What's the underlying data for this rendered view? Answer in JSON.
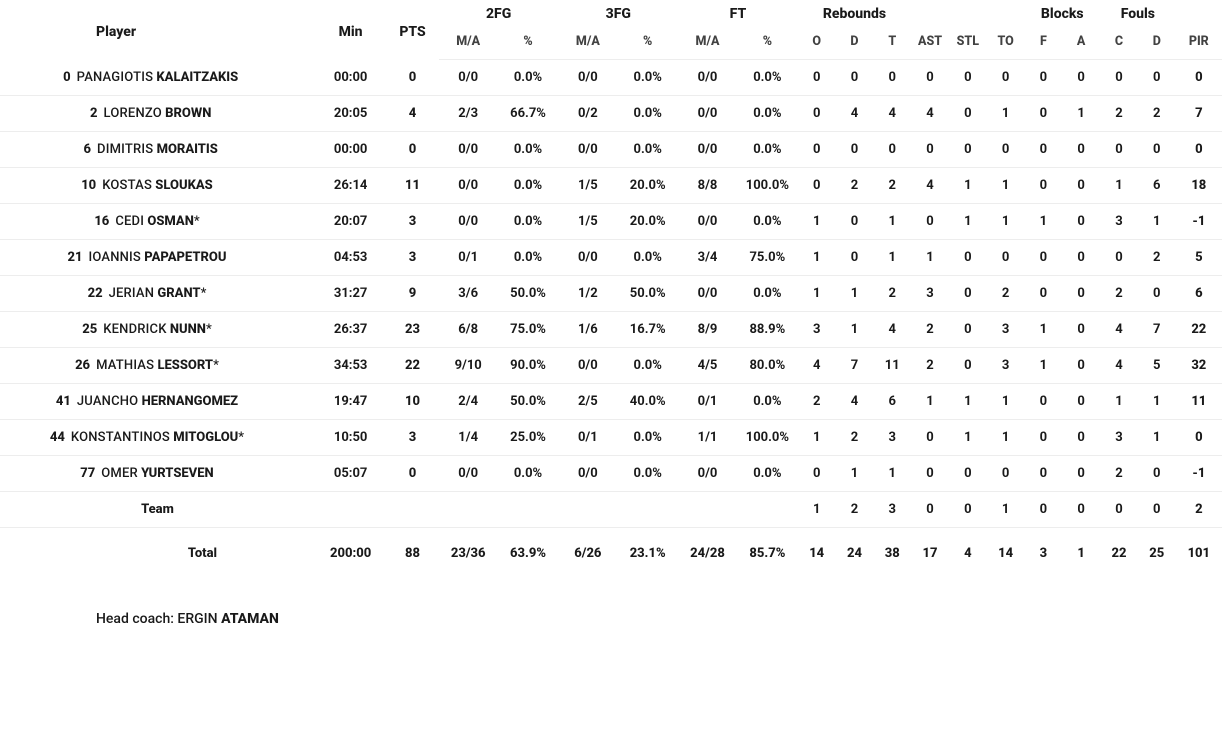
{
  "headers": {
    "player_label": "Player",
    "min": "Min",
    "pts": "PTS",
    "groups": {
      "fg2": "2FG",
      "fg3": "3FG",
      "ft": "FT",
      "reb": "Rebounds",
      "blk": "Blocks",
      "fls": "Fouls"
    },
    "sub": {
      "ma": "M/A",
      "pct": "%",
      "o": "O",
      "d": "D",
      "t": "T",
      "ast": "AST",
      "stl": "STL",
      "to": "TO",
      "f": "F",
      "a": "A",
      "c": "C",
      "pir": "PIR"
    }
  },
  "colors": {
    "text": "#1a1a1a",
    "muted": "#424242",
    "border": "#ededed",
    "bg": "#ffffff",
    "scrollbar": "#d9d9d9"
  },
  "players": [
    {
      "num": "0",
      "first": "PANAGIOTIS",
      "last": "KALAITZAKIS",
      "starter": false,
      "min": "00:00",
      "pts": "0",
      "fg2_ma": "0/0",
      "fg2_pct": "0.0%",
      "fg3_ma": "0/0",
      "fg3_pct": "0.0%",
      "ft_ma": "0/0",
      "ft_pct": "0.0%",
      "reb_o": "0",
      "reb_d": "0",
      "reb_t": "0",
      "ast": "0",
      "stl": "0",
      "to": "0",
      "blk_f": "0",
      "blk_a": "0",
      "fl_c": "0",
      "fl_d": "0",
      "pir": "0"
    },
    {
      "num": "2",
      "first": "LORENZO",
      "last": "BROWN",
      "starter": false,
      "min": "20:05",
      "pts": "4",
      "fg2_ma": "2/3",
      "fg2_pct": "66.7%",
      "fg3_ma": "0/2",
      "fg3_pct": "0.0%",
      "ft_ma": "0/0",
      "ft_pct": "0.0%",
      "reb_o": "0",
      "reb_d": "4",
      "reb_t": "4",
      "ast": "4",
      "stl": "0",
      "to": "1",
      "blk_f": "0",
      "blk_a": "1",
      "fl_c": "2",
      "fl_d": "2",
      "pir": "7"
    },
    {
      "num": "6",
      "first": "DIMITRIS",
      "last": "MORAITIS",
      "starter": false,
      "min": "00:00",
      "pts": "0",
      "fg2_ma": "0/0",
      "fg2_pct": "0.0%",
      "fg3_ma": "0/0",
      "fg3_pct": "0.0%",
      "ft_ma": "0/0",
      "ft_pct": "0.0%",
      "reb_o": "0",
      "reb_d": "0",
      "reb_t": "0",
      "ast": "0",
      "stl": "0",
      "to": "0",
      "blk_f": "0",
      "blk_a": "0",
      "fl_c": "0",
      "fl_d": "0",
      "pir": "0"
    },
    {
      "num": "10",
      "first": "KOSTAS",
      "last": "SLOUKAS",
      "starter": false,
      "min": "26:14",
      "pts": "11",
      "fg2_ma": "0/0",
      "fg2_pct": "0.0%",
      "fg3_ma": "1/5",
      "fg3_pct": "20.0%",
      "ft_ma": "8/8",
      "ft_pct": "100.0%",
      "reb_o": "0",
      "reb_d": "2",
      "reb_t": "2",
      "ast": "4",
      "stl": "1",
      "to": "1",
      "blk_f": "0",
      "blk_a": "0",
      "fl_c": "1",
      "fl_d": "6",
      "pir": "18"
    },
    {
      "num": "16",
      "first": "CEDI",
      "last": "OSMAN",
      "starter": true,
      "min": "20:07",
      "pts": "3",
      "fg2_ma": "0/0",
      "fg2_pct": "0.0%",
      "fg3_ma": "1/5",
      "fg3_pct": "20.0%",
      "ft_ma": "0/0",
      "ft_pct": "0.0%",
      "reb_o": "1",
      "reb_d": "0",
      "reb_t": "1",
      "ast": "0",
      "stl": "1",
      "to": "1",
      "blk_f": "1",
      "blk_a": "0",
      "fl_c": "3",
      "fl_d": "1",
      "pir": "-1"
    },
    {
      "num": "21",
      "first": "IOANNIS",
      "last": "PAPAPETROU",
      "starter": false,
      "min": "04:53",
      "pts": "3",
      "fg2_ma": "0/1",
      "fg2_pct": "0.0%",
      "fg3_ma": "0/0",
      "fg3_pct": "0.0%",
      "ft_ma": "3/4",
      "ft_pct": "75.0%",
      "reb_o": "1",
      "reb_d": "0",
      "reb_t": "1",
      "ast": "1",
      "stl": "0",
      "to": "0",
      "blk_f": "0",
      "blk_a": "0",
      "fl_c": "0",
      "fl_d": "2",
      "pir": "5"
    },
    {
      "num": "22",
      "first": "JERIAN",
      "last": "GRANT",
      "starter": true,
      "min": "31:27",
      "pts": "9",
      "fg2_ma": "3/6",
      "fg2_pct": "50.0%",
      "fg3_ma": "1/2",
      "fg3_pct": "50.0%",
      "ft_ma": "0/0",
      "ft_pct": "0.0%",
      "reb_o": "1",
      "reb_d": "1",
      "reb_t": "2",
      "ast": "3",
      "stl": "0",
      "to": "2",
      "blk_f": "0",
      "blk_a": "0",
      "fl_c": "2",
      "fl_d": "0",
      "pir": "6"
    },
    {
      "num": "25",
      "first": "KENDRICK",
      "last": "NUNN",
      "starter": true,
      "min": "26:37",
      "pts": "23",
      "fg2_ma": "6/8",
      "fg2_pct": "75.0%",
      "fg3_ma": "1/6",
      "fg3_pct": "16.7%",
      "ft_ma": "8/9",
      "ft_pct": "88.9%",
      "reb_o": "3",
      "reb_d": "1",
      "reb_t": "4",
      "ast": "2",
      "stl": "0",
      "to": "3",
      "blk_f": "1",
      "blk_a": "0",
      "fl_c": "4",
      "fl_d": "7",
      "pir": "22"
    },
    {
      "num": "26",
      "first": "MATHIAS",
      "last": "LESSORT",
      "starter": true,
      "min": "34:53",
      "pts": "22",
      "fg2_ma": "9/10",
      "fg2_pct": "90.0%",
      "fg3_ma": "0/0",
      "fg3_pct": "0.0%",
      "ft_ma": "4/5",
      "ft_pct": "80.0%",
      "reb_o": "4",
      "reb_d": "7",
      "reb_t": "11",
      "ast": "2",
      "stl": "0",
      "to": "3",
      "blk_f": "1",
      "blk_a": "0",
      "fl_c": "4",
      "fl_d": "5",
      "pir": "32"
    },
    {
      "num": "41",
      "first": "JUANCHO",
      "last": "HERNANGOMEZ",
      "starter": false,
      "min": "19:47",
      "pts": "10",
      "fg2_ma": "2/4",
      "fg2_pct": "50.0%",
      "fg3_ma": "2/5",
      "fg3_pct": "40.0%",
      "ft_ma": "0/1",
      "ft_pct": "0.0%",
      "reb_o": "2",
      "reb_d": "4",
      "reb_t": "6",
      "ast": "1",
      "stl": "1",
      "to": "1",
      "blk_f": "0",
      "blk_a": "0",
      "fl_c": "1",
      "fl_d": "1",
      "pir": "11"
    },
    {
      "num": "44",
      "first": "KONSTANTINOS",
      "last": "MITOGLOU",
      "starter": true,
      "min": "10:50",
      "pts": "3",
      "fg2_ma": "1/4",
      "fg2_pct": "25.0%",
      "fg3_ma": "0/1",
      "fg3_pct": "0.0%",
      "ft_ma": "1/1",
      "ft_pct": "100.0%",
      "reb_o": "1",
      "reb_d": "2",
      "reb_t": "3",
      "ast": "0",
      "stl": "1",
      "to": "1",
      "blk_f": "0",
      "blk_a": "0",
      "fl_c": "3",
      "fl_d": "1",
      "pir": "0"
    },
    {
      "num": "77",
      "first": "OMER",
      "last": "YURTSEVEN",
      "starter": false,
      "min": "05:07",
      "pts": "0",
      "fg2_ma": "0/0",
      "fg2_pct": "0.0%",
      "fg3_ma": "0/0",
      "fg3_pct": "0.0%",
      "ft_ma": "0/0",
      "ft_pct": "0.0%",
      "reb_o": "0",
      "reb_d": "1",
      "reb_t": "1",
      "ast": "0",
      "stl": "0",
      "to": "0",
      "blk_f": "0",
      "blk_a": "0",
      "fl_c": "2",
      "fl_d": "0",
      "pir": "-1"
    }
  ],
  "team_row": {
    "label": "Team",
    "reb_o": "1",
    "reb_d": "2",
    "reb_t": "3",
    "ast": "0",
    "stl": "0",
    "to": "1",
    "blk_f": "0",
    "blk_a": "0",
    "fl_c": "0",
    "fl_d": "0",
    "pir": "2"
  },
  "total_row": {
    "label": "Total",
    "min": "200:00",
    "pts": "88",
    "fg2_ma": "23/36",
    "fg2_pct": "63.9%",
    "fg3_ma": "6/26",
    "fg3_pct": "23.1%",
    "ft_ma": "24/28",
    "ft_pct": "85.7%",
    "reb_o": "14",
    "reb_d": "24",
    "reb_t": "38",
    "ast": "17",
    "stl": "4",
    "to": "14",
    "blk_f": "3",
    "blk_a": "1",
    "fl_c": "22",
    "fl_d": "25",
    "pir": "101"
  },
  "head_coach": {
    "label": "Head coach:",
    "first": "ERGIN",
    "last": "ATAMAN"
  }
}
